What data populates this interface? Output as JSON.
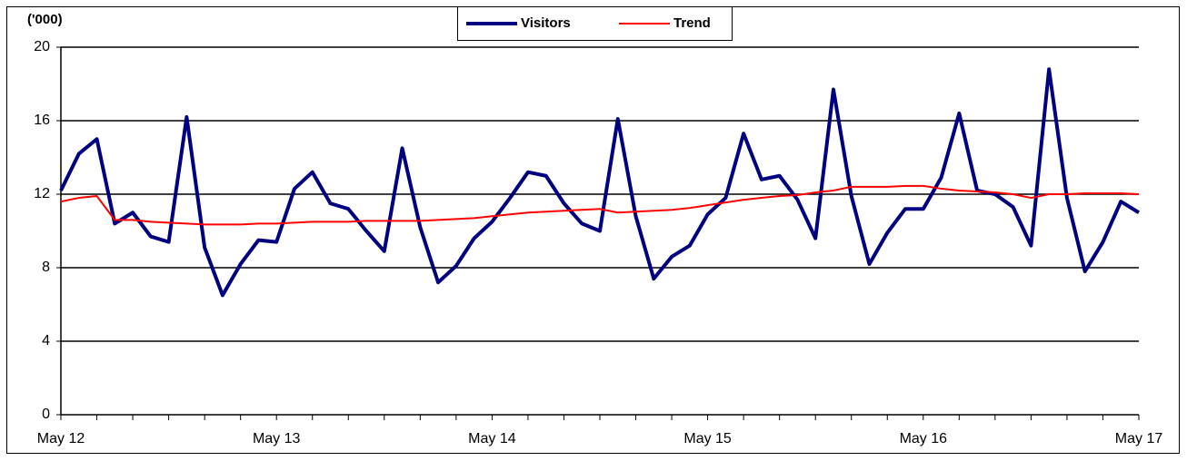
{
  "chart_data": {
    "type": "line",
    "y_label": "('000)",
    "categories": [
      "May 12",
      null,
      null,
      null,
      null,
      null,
      null,
      null,
      null,
      null,
      null,
      null,
      "May 13",
      null,
      null,
      null,
      null,
      null,
      null,
      null,
      null,
      null,
      null,
      null,
      "May 14",
      null,
      null,
      null,
      null,
      null,
      null,
      null,
      null,
      null,
      null,
      null,
      "May 15",
      null,
      null,
      null,
      null,
      null,
      null,
      null,
      null,
      null,
      null,
      null,
      "May 16",
      null,
      null,
      null,
      null,
      null,
      null,
      null,
      null,
      null,
      null,
      null,
      "May 17"
    ],
    "series": [
      {
        "name": "Visitors",
        "color": "#000080",
        "width": 4,
        "values": [
          12.2,
          14.2,
          15.0,
          10.4,
          11.0,
          9.7,
          9.4,
          16.2,
          9.1,
          6.5,
          8.2,
          9.5,
          9.4,
          12.3,
          13.2,
          11.5,
          11.2,
          10.0,
          8.9,
          14.5,
          10.2,
          7.2,
          8.1,
          9.6,
          10.5,
          11.8,
          13.2,
          13.0,
          11.5,
          10.4,
          10.0,
          16.1,
          10.8,
          7.4,
          8.6,
          9.2,
          10.9,
          11.8,
          15.3,
          12.8,
          13.0,
          11.7,
          9.6,
          17.7,
          11.9,
          8.2,
          9.9,
          11.2,
          11.2,
          12.9,
          16.4,
          12.2,
          12.0,
          11.3,
          9.2,
          18.8,
          11.8,
          7.8,
          9.4,
          11.6,
          11.0
        ]
      },
      {
        "name": "Trend",
        "color": "#ff0000",
        "width": 2,
        "values": [
          11.6,
          11.8,
          11.9,
          10.6,
          10.6,
          10.5,
          10.45,
          10.4,
          10.35,
          10.35,
          10.35,
          10.4,
          10.4,
          10.45,
          10.5,
          10.5,
          10.5,
          10.55,
          10.55,
          10.55,
          10.55,
          10.6,
          10.65,
          10.7,
          10.8,
          10.9,
          11.0,
          11.05,
          11.1,
          11.15,
          11.2,
          11.0,
          11.05,
          11.1,
          11.15,
          11.25,
          11.4,
          11.55,
          11.7,
          11.8,
          11.9,
          11.95,
          12.1,
          12.2,
          12.4,
          12.4,
          12.4,
          12.45,
          12.45,
          12.3,
          12.2,
          12.15,
          12.1,
          12.0,
          11.8,
          12.0,
          12.0,
          12.05,
          12.05,
          12.05,
          12.0
        ]
      }
    ],
    "ylim": [
      0,
      20
    ],
    "yticks": [
      0,
      4,
      8,
      12,
      16,
      20
    ],
    "grid": true,
    "legend": "top"
  }
}
